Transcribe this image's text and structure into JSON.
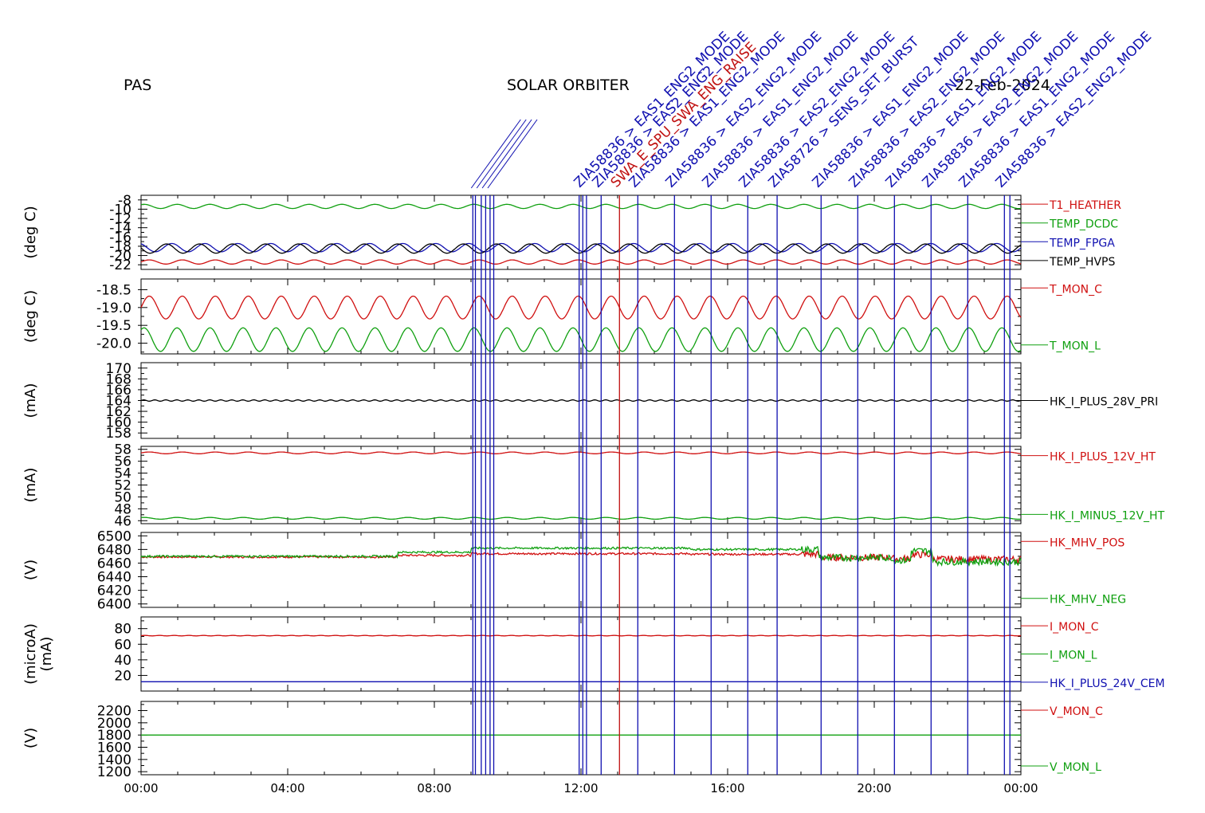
{
  "header": {
    "instrument": "PAS",
    "mission": "SOLAR ORBITER",
    "date": "22-Feb-2024"
  },
  "chart_data": {
    "type": "line",
    "x_ticks": [
      "00:00",
      "04:00",
      "08:00",
      "12:00",
      "16:00",
      "20:00",
      "00:00"
    ],
    "x_range_hours": [
      0,
      24
    ],
    "event_lines": [
      {
        "hour": 9.05,
        "color": "#1010b0"
      },
      {
        "hour": 9.12,
        "color": "#1010b0"
      },
      {
        "hour": 9.28,
        "color": "#1010b0"
      },
      {
        "hour": 9.4,
        "color": "#1010b0"
      },
      {
        "hour": 9.52,
        "color": "#1010b0"
      },
      {
        "hour": 9.62,
        "color": "#1010b0"
      },
      {
        "hour": 11.95,
        "color": "#1010b0"
      },
      {
        "hour": 12.05,
        "color": "#1010b0"
      },
      {
        "hour": 12.15,
        "color": "#1010b0"
      },
      {
        "hour": 12.55,
        "color": "#1010b0"
      },
      {
        "hour": 13.05,
        "color": "#c01010"
      },
      {
        "hour": 13.55,
        "color": "#1010b0"
      },
      {
        "hour": 14.55,
        "color": "#1010b0"
      },
      {
        "hour": 15.55,
        "color": "#1010b0"
      },
      {
        "hour": 16.55,
        "color": "#1010b0"
      },
      {
        "hour": 17.35,
        "color": "#1010b0"
      },
      {
        "hour": 18.55,
        "color": "#1010b0"
      },
      {
        "hour": 19.55,
        "color": "#1010b0"
      },
      {
        "hour": 20.55,
        "color": "#1010b0"
      },
      {
        "hour": 21.55,
        "color": "#1010b0"
      },
      {
        "hour": 22.55,
        "color": "#1010b0"
      },
      {
        "hour": 23.55,
        "color": "#1010b0"
      },
      {
        "hour": 23.7,
        "color": "#1010b0"
      }
    ],
    "event_labels": [
      {
        "hour": 12.05,
        "text": "ZIA58836 > EAS1_ENG2_MODE",
        "color": "#1010b0"
      },
      {
        "hour": 12.55,
        "text": "ZIA58836 > EAS2_ENG2_MODE",
        "color": "#1010b0"
      },
      {
        "hour": 13.05,
        "text": "SWA_E_SPU_SWA_ENG_RAISE",
        "color": "#c01010"
      },
      {
        "hour": 13.55,
        "text": "ZIA58836 > EAS1_ENG2_MODE",
        "color": "#1010b0"
      },
      {
        "hour": 14.55,
        "text": "ZIA58836 > EAS2_ENG2_MODE",
        "color": "#1010b0"
      },
      {
        "hour": 15.55,
        "text": "ZIA58836 > EAS1_ENG2_MODE",
        "color": "#1010b0"
      },
      {
        "hour": 16.55,
        "text": "ZIA58836 > EAS2_ENG2_MODE",
        "color": "#1010b0"
      },
      {
        "hour": 17.35,
        "text": "ZIA58726 > SENS_SET_BURST",
        "color": "#1010b0"
      },
      {
        "hour": 18.55,
        "text": "ZIA58836 > EAS1_ENG2_MODE",
        "color": "#1010b0"
      },
      {
        "hour": 19.55,
        "text": "ZIA58836 > EAS2_ENG2_MODE",
        "color": "#1010b0"
      },
      {
        "hour": 20.55,
        "text": "ZIA58836 > EAS1_ENG2_MODE",
        "color": "#1010b0"
      },
      {
        "hour": 21.55,
        "text": "ZIA58836 > EAS2_ENG2_MODE",
        "color": "#1010b0"
      },
      {
        "hour": 22.55,
        "text": "ZIA58836 > EAS1_ENG2_MODE",
        "color": "#1010b0"
      },
      {
        "hour": 23.55,
        "text": "ZIA58836 > EAS2_ENG2_MODE",
        "color": "#1010b0"
      }
    ],
    "panels": [
      {
        "ylabel": "(deg C)",
        "ylim": [
          -23,
          -7
        ],
        "ticks": [
          -8,
          -10,
          -12,
          -14,
          -16,
          -18,
          -20,
          -22
        ],
        "tick_labels": [
          "-8",
          "-10",
          "-12",
          "-14",
          "-16",
          "-18",
          "-20",
          "-22"
        ],
        "series": [
          {
            "name": "T1_HEATHER",
            "color": "#d01010",
            "base": -21.4,
            "amp": 0.45,
            "period_h": 0.9
          },
          {
            "name": "TEMP_DCDC",
            "color": "#10a010",
            "base": -9.4,
            "amp": 0.45,
            "period_h": 0.9
          },
          {
            "name": "TEMP_FPGA",
            "color": "#1010b0",
            "base": -18.3,
            "amp": 0.9,
            "period_h": 0.9
          },
          {
            "name": "TEMP_HVPS",
            "color": "#000000",
            "base": -18.5,
            "amp": 1.0,
            "period_h": 0.9
          }
        ]
      },
      {
        "ylabel": "(deg C)",
        "ylim": [
          -20.3,
          -18.2
        ],
        "ticks": [
          -18.5,
          -19.0,
          -19.5,
          -20.0
        ],
        "tick_labels": [
          "-18.5",
          "-19.0",
          "-19.5",
          "-20.0"
        ],
        "series": [
          {
            "name": "T_MON_C",
            "color": "#d01010",
            "base": -19.0,
            "amp": 0.32,
            "period_h": 0.9
          },
          {
            "name": "T_MON_L",
            "color": "#10a010",
            "base": -19.9,
            "amp": 0.33,
            "period_h": 0.9
          }
        ]
      },
      {
        "ylabel": "(mA)",
        "ylim": [
          157,
          171
        ],
        "ticks": [
          158,
          160,
          162,
          164,
          166,
          168,
          170
        ],
        "tick_labels": [
          "158",
          "160",
          "162",
          "164",
          "166",
          "168",
          "170"
        ],
        "series": [
          {
            "name": "HK_I_PLUS_28V_PRI",
            "color": "#000000",
            "base": 164.0,
            "amp": 0.12,
            "period_h": 0.3
          }
        ]
      },
      {
        "ylabel": "(mA)",
        "ylim": [
          45.5,
          58.5
        ],
        "ticks": [
          46,
          48,
          50,
          52,
          54,
          56,
          58
        ],
        "tick_labels": [
          "46",
          "48",
          "50",
          "52",
          "54",
          "56",
          "58"
        ],
        "series": [
          {
            "name": "HK_I_PLUS_12V_HT",
            "color": "#d01010",
            "base": 57.4,
            "amp": 0.15,
            "period_h": 0.9
          },
          {
            "name": "HK_I_MINUS_12V_HT",
            "color": "#10a010",
            "base": 46.4,
            "amp": 0.15,
            "period_h": 0.9
          }
        ]
      },
      {
        "ylabel": "(V)",
        "ylim": [
          6395,
          6505
        ],
        "ticks": [
          6400,
          6420,
          6440,
          6460,
          6480,
          6500
        ],
        "tick_labels": [
          "6400",
          "6420",
          "6440",
          "6460",
          "6480",
          "6500"
        ],
        "series": [
          {
            "name": "HK_MHV_POS",
            "color": "#d01010",
            "base": 6469,
            "amp": 0,
            "period_h": 1
          },
          {
            "name": "HK_MHV_NEG",
            "color": "#10a010",
            "base": 6470,
            "amp": 0,
            "period_h": 1
          }
        ]
      },
      {
        "ylabel": "(microA)",
        "ylabel2": "(mA)",
        "ylim": [
          0,
          95
        ],
        "ticks": [
          20,
          40,
          60,
          80
        ],
        "tick_labels": [
          "20",
          "40",
          "60",
          "80"
        ],
        "series": [
          {
            "name": "I_MON_C",
            "color": "#d01010",
            "base": 71,
            "amp": 0.3,
            "period_h": 0.4
          },
          {
            "name": "I_MON_L",
            "color": "#10a010",
            "base": 0,
            "amp": 0,
            "period_h": 1
          },
          {
            "name": "HK_I_PLUS_24V_CEM",
            "color": "#1010b0",
            "base": 12,
            "amp": 0,
            "period_h": 1
          }
        ]
      },
      {
        "ylabel": "(V)",
        "ylim": [
          1150,
          2350
        ],
        "ticks": [
          1200,
          1400,
          1600,
          1800,
          2000,
          2200
        ],
        "tick_labels": [
          "1200",
          "1400",
          "1600",
          "1800",
          "2000",
          "2200"
        ],
        "series": [
          {
            "name": "V_MON_C",
            "color": "#d01010",
            "base": 1800,
            "amp": 0,
            "period_h": 1
          },
          {
            "name": "V_MON_L",
            "color": "#10a010",
            "base": 1800,
            "amp": 0,
            "period_h": 1
          }
        ]
      }
    ]
  }
}
